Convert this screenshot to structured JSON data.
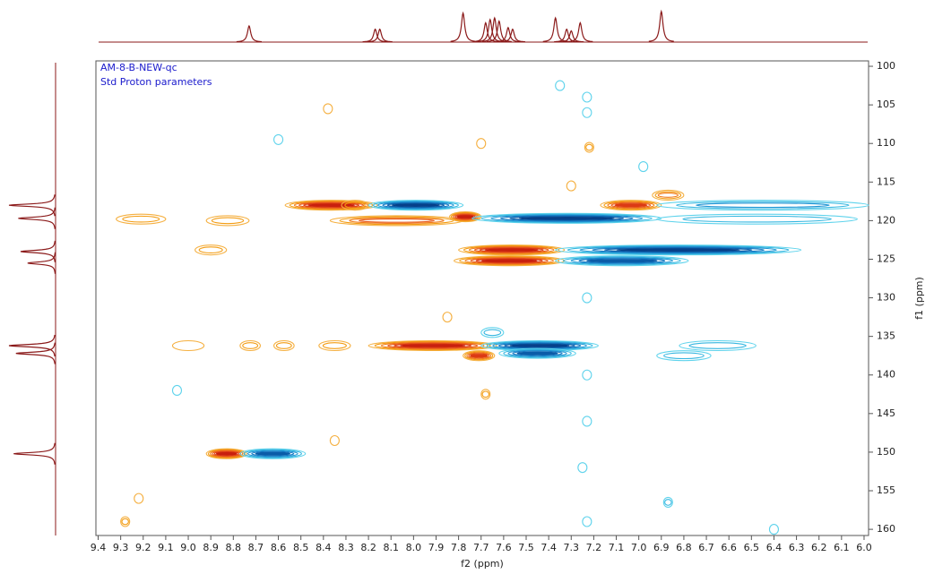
{
  "chart_data": {
    "type": "contour",
    "annotations": [
      "AM-8-B-NEW-qc",
      "Std Proton parameters"
    ],
    "xlabel": "f2 (ppm)",
    "ylabel": "f1 (ppm)",
    "xlim": [
      9.41,
      5.98
    ],
    "ylim": [
      99.3,
      160.8
    ],
    "xticks": [
      9.4,
      9.3,
      9.2,
      9.1,
      {
        "value": 9.0,
        "label": "9.0"
      },
      8.9,
      8.8,
      8.7,
      8.6,
      8.5,
      8.4,
      8.3,
      8.2,
      8.1,
      {
        "value": 8.0,
        "label": "8.0"
      },
      7.9,
      7.8,
      7.7,
      7.6,
      7.5,
      7.4,
      7.3,
      7.2,
      7.1,
      {
        "value": 7.0,
        "label": "7.0"
      },
      6.9,
      6.8,
      6.7,
      6.6,
      6.5,
      6.4,
      6.3,
      6.2,
      6.1,
      {
        "value": 6.0,
        "label": "6.0"
      }
    ],
    "yticks": [
      100,
      105,
      110,
      115,
      120,
      125,
      130,
      135,
      140,
      145,
      150,
      155,
      160
    ],
    "series": [
      {
        "color": [
          "#f5b041",
          "#f39c12",
          "#f07a1a",
          "#e85a1a",
          "#dc3a14",
          "#c8200e"
        ],
        "x1": [
          8.55,
          8.35,
          7.82,
          7.78,
          7.8,
          8.18,
          7.76,
          8.9,
          7.15,
          6.92,
          9.3,
          8.9,
          8.95,
          8.4,
          8.75,
          8.6,
          9.05,
          8.3,
          9.28,
          9.22,
          7.68,
          7.85,
          7.7,
          8.38,
          8.35,
          7.22,
          7.3
        ],
        "x2": [
          8.18,
          7.8,
          7.72,
          7.35,
          7.35,
          7.65,
          7.66,
          8.76,
          6.92,
          6.82,
          9.12,
          8.75,
          8.85,
          8.3,
          8.7,
          8.55,
          8.95,
          8.22,
          9.28,
          9.22,
          7.68,
          7.85,
          7.7,
          8.38,
          8.35,
          7.22,
          7.3
        ],
        "y": [
          118,
          120,
          119.5,
          123.8,
          125.2,
          136.2,
          137.5,
          150.2,
          118,
          116.7,
          119.8,
          120,
          123.8,
          136.2,
          136.2,
          136.2,
          136.2,
          118,
          159,
          156,
          142.5,
          132.5,
          110,
          105.5,
          148.5,
          110.5,
          115.5
        ],
        "levels": [
          6,
          4,
          6,
          6,
          6,
          6,
          5,
          6,
          5,
          3,
          2,
          2,
          2,
          2,
          2,
          2,
          1,
          2,
          2,
          1,
          2,
          1,
          1,
          1,
          1,
          2,
          1
        ]
      },
      {
        "color": [
          "#5fd3ec",
          "#35b6e0",
          "#2196d4",
          "#1478c2",
          "#0b5ca8",
          "#06418a"
        ],
        "x1": [
          8.18,
          7.72,
          7.35,
          7.35,
          7.68,
          7.6,
          8.75,
          6.9,
          6.9,
          6.8,
          6.9,
          7.68,
          7.23,
          7.23,
          7.23,
          7.23,
          7.23,
          7.25,
          7.23,
          6.87,
          6.98,
          8.6,
          9.05,
          6.4,
          7.35
        ],
        "x2": [
          7.8,
          6.92,
          6.3,
          6.8,
          7.2,
          7.3,
          8.5,
          6.0,
          6.05,
          6.5,
          6.7,
          7.62,
          7.23,
          7.23,
          7.23,
          7.23,
          7.23,
          7.25,
          7.23,
          6.87,
          6.98,
          8.6,
          9.05,
          6.4,
          7.35
        ],
        "y": [
          118,
          119.7,
          123.8,
          125.2,
          136.2,
          137.2,
          150.2,
          118,
          119.8,
          136.2,
          137.5,
          134.5,
          104,
          106,
          130,
          140,
          146,
          152,
          159,
          156.5,
          113,
          109.5,
          142,
          160,
          102.5
        ],
        "levels": [
          6,
          6,
          6,
          5,
          6,
          5,
          5,
          3,
          2,
          2,
          2,
          2,
          1,
          1,
          1,
          1,
          1,
          1,
          1,
          2,
          1,
          1,
          1,
          1,
          1
        ]
      }
    ],
    "projection_color": "#8b1a1a",
    "f2_projection": {
      "x": [
        8.73,
        8.17,
        8.15,
        7.78,
        7.68,
        7.66,
        7.64,
        7.62,
        7.58,
        7.56,
        7.37,
        7.32,
        7.3,
        7.26,
        6.9
      ],
      "heights": [
        0.5,
        0.4,
        0.4,
        0.9,
        0.6,
        0.7,
        0.75,
        0.65,
        0.45,
        0.4,
        0.75,
        0.4,
        0.35,
        0.6,
        0.95
      ]
    },
    "f1_projection": {
      "y": [
        118,
        119.7,
        124,
        125.5,
        136.2,
        137.2,
        150.2
      ],
      "heights": [
        1.0,
        0.8,
        0.75,
        0.6,
        1.0,
        0.85,
        0.9
      ]
    }
  }
}
